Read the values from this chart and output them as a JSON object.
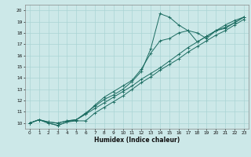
{
  "xlabel": "Humidex (Indice chaleur)",
  "bg_color": "#cce8e8",
  "line_color": "#1a6b60",
  "grid_color": "#aad4d4",
  "xlim": [
    -0.5,
    23.5
  ],
  "ylim": [
    9.5,
    20.5
  ],
  "xticks": [
    0,
    1,
    2,
    3,
    4,
    5,
    6,
    7,
    8,
    9,
    10,
    11,
    12,
    13,
    14,
    15,
    16,
    17,
    18,
    19,
    20,
    21,
    22,
    23
  ],
  "yticks": [
    10,
    11,
    12,
    13,
    14,
    15,
    16,
    17,
    18,
    19,
    20
  ],
  "line1_x": [
    0,
    1,
    2,
    3,
    4,
    5,
    6,
    7,
    8,
    9,
    10,
    11,
    12,
    13,
    14,
    15,
    16,
    17,
    18,
    19,
    20,
    21,
    22,
    23
  ],
  "line1_y": [
    10.0,
    10.3,
    10.0,
    9.8,
    10.1,
    10.2,
    10.2,
    10.9,
    11.4,
    11.9,
    12.4,
    13.0,
    13.6,
    14.1,
    14.7,
    15.2,
    15.7,
    16.3,
    16.8,
    17.3,
    17.8,
    18.2,
    18.7,
    19.2
  ],
  "line2_x": [
    0,
    1,
    2,
    3,
    4,
    5,
    6,
    7,
    8,
    9,
    10,
    11,
    12,
    13,
    14,
    15,
    16,
    17,
    18,
    19,
    20,
    21,
    22,
    23
  ],
  "line2_y": [
    10.0,
    10.3,
    10.1,
    10.0,
    10.2,
    10.3,
    10.8,
    11.3,
    11.8,
    12.3,
    12.8,
    13.3,
    13.9,
    14.4,
    14.9,
    15.5,
    16.1,
    16.7,
    17.2,
    17.7,
    18.2,
    18.7,
    19.1,
    19.4
  ],
  "line3_x": [
    0,
    1,
    2,
    3,
    4,
    5,
    6,
    7,
    8,
    9,
    10,
    11,
    12,
    13,
    14,
    15,
    16,
    17,
    18,
    19,
    20,
    21,
    22,
    23
  ],
  "line3_y": [
    10.0,
    10.3,
    10.1,
    10.0,
    10.2,
    10.3,
    10.8,
    11.6,
    12.3,
    12.8,
    13.3,
    13.8,
    14.8,
    16.2,
    17.3,
    17.5,
    18.0,
    18.2,
    17.2,
    17.7,
    18.2,
    18.5,
    18.9,
    19.4
  ],
  "line4_x": [
    0,
    1,
    2,
    3,
    4,
    5,
    6,
    7,
    8,
    9,
    10,
    11,
    12,
    13,
    14,
    15,
    16,
    17,
    18,
    19,
    20,
    21,
    22,
    23
  ],
  "line4_y": [
    10.0,
    10.3,
    10.0,
    9.8,
    10.1,
    10.3,
    10.9,
    11.5,
    12.1,
    12.5,
    13.0,
    13.7,
    14.6,
    16.6,
    19.7,
    19.4,
    18.7,
    18.2,
    18.0,
    17.5,
    18.2,
    18.4,
    18.9,
    19.4
  ]
}
